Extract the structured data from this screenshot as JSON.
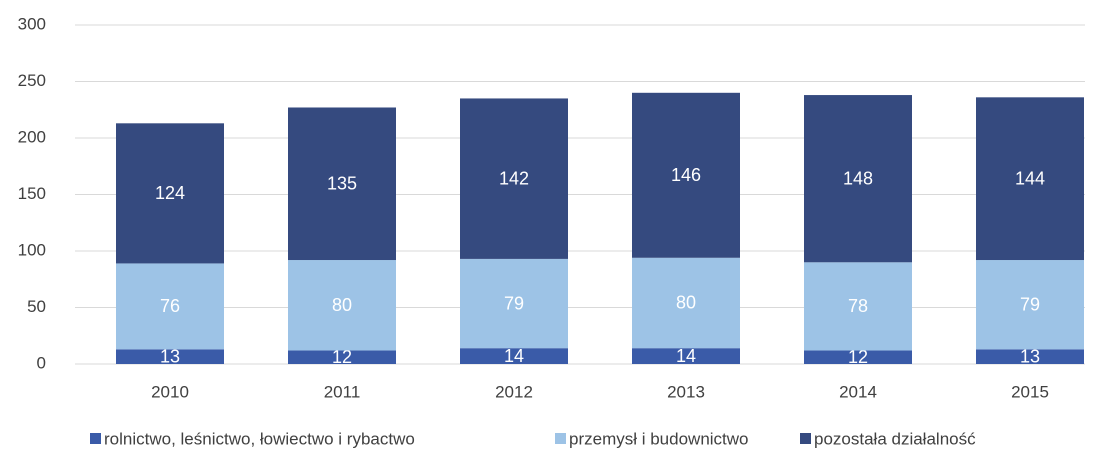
{
  "chart_data": {
    "type": "bar",
    "stacked": true,
    "categories": [
      "2010",
      "2011",
      "2012",
      "2013",
      "2014",
      "2015"
    ],
    "series": [
      {
        "name": "rolnictwo, leśnictwo, łowiectwo i rybactwo",
        "color": "#3a5ba8",
        "values": [
          13,
          12,
          14,
          14,
          12,
          13
        ]
      },
      {
        "name": "przemysł i budownictwo",
        "color": "#9dc3e6",
        "values": [
          76,
          80,
          79,
          80,
          78,
          79
        ]
      },
      {
        "name": "pozostała działalność",
        "color": "#354a7f",
        "values": [
          124,
          135,
          142,
          146,
          148,
          144
        ]
      }
    ],
    "ylim": [
      0,
      300
    ],
    "yticks": [
      0,
      50,
      100,
      150,
      200,
      250,
      300
    ],
    "grid": true,
    "legend": "bottom"
  }
}
